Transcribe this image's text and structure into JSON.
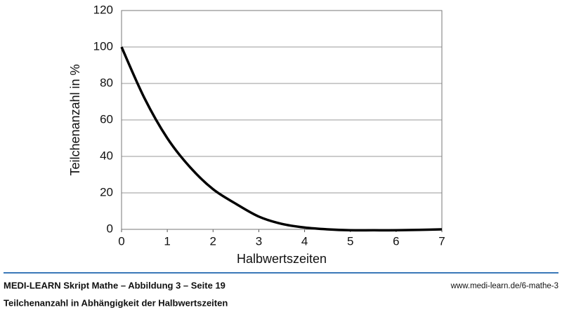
{
  "chart_data": {
    "type": "line",
    "x": [
      0,
      0.5,
      1,
      1.5,
      2,
      2.5,
      3,
      3.5,
      4,
      4.5,
      5,
      5.5,
      6,
      6.5,
      7
    ],
    "values": [
      100,
      72,
      50,
      34,
      22,
      14,
      7,
      3,
      1,
      0,
      -0.5,
      -0.5,
      -0.5,
      -0.3,
      0
    ],
    "color": "#000000",
    "xlim": [
      0,
      7
    ],
    "xticks": [
      0,
      1,
      2,
      3,
      4,
      5,
      6,
      7
    ],
    "ylim": [
      0,
      120
    ],
    "yticks": [
      0,
      20,
      40,
      60,
      80,
      100,
      120
    ],
    "grid": true,
    "x_label": "Halbwertszeiten",
    "y_label": "Teilchenanzahl in %"
  },
  "footer": {
    "source": "MEDI-LEARN Skript Mathe – Abbildung 3 – Seite 19",
    "url": "www.medi-learn.de/6-mathe-3",
    "caption": "Teilchenanzahl in Abhängigkeit der Halbwertszeiten"
  }
}
